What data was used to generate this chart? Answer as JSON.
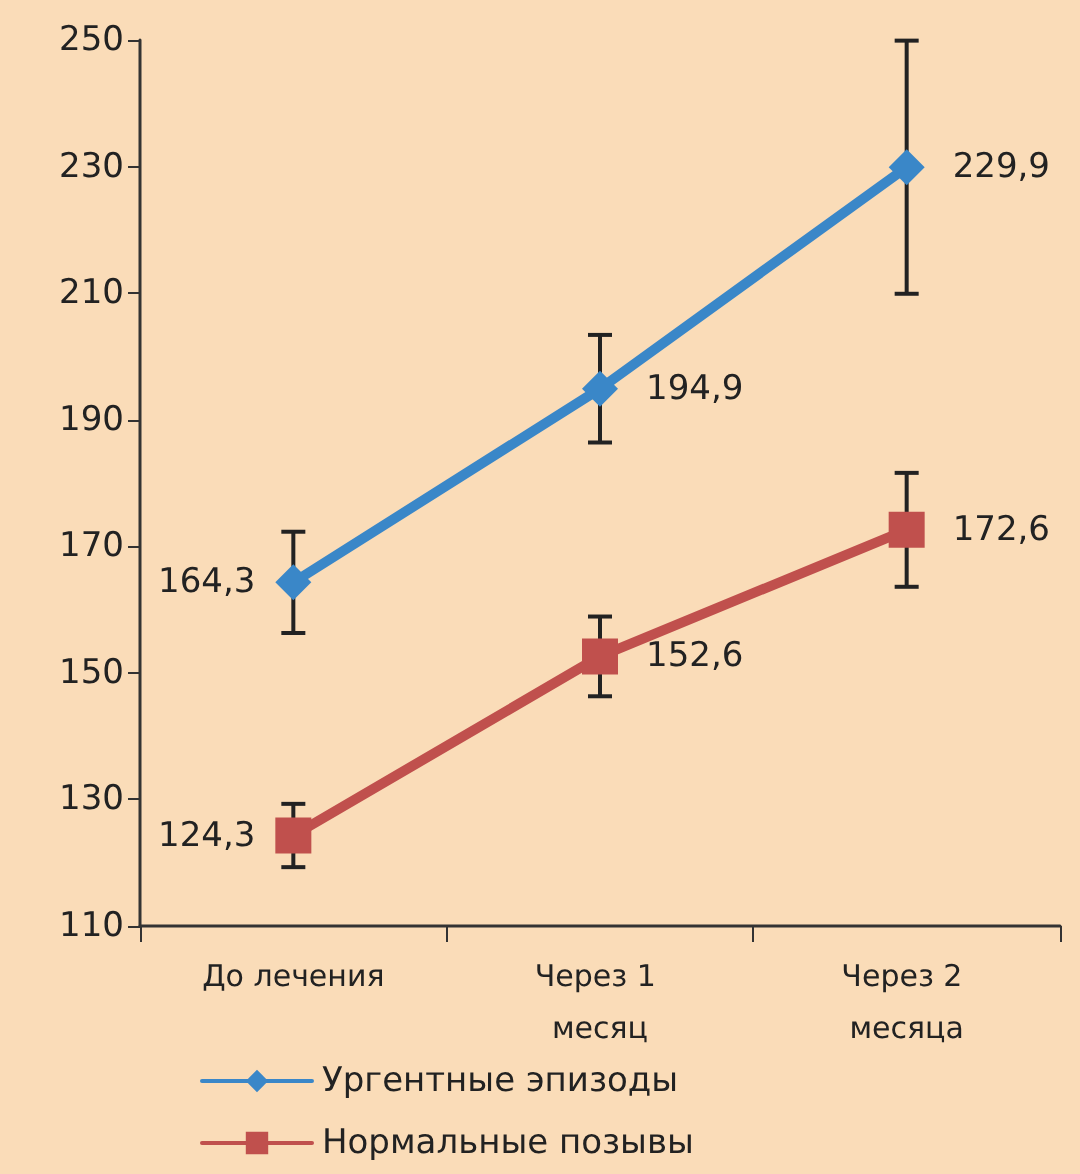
{
  "chart_data": {
    "type": "line",
    "categories": [
      "До лечения",
      "Через 1 месяц",
      "Через 2 месяца"
    ],
    "series": [
      {
        "name": "Ургентные эпизоды",
        "color": "#3a87c8",
        "marker": "diamond",
        "values": [
          164.3,
          194.9,
          229.9
        ],
        "value_labels": [
          "164,3",
          "194,9",
          "229,9"
        ],
        "errors": [
          8,
          8.5,
          20
        ]
      },
      {
        "name": "Нормальные позывы",
        "color": "#c0504d",
        "marker": "square",
        "values": [
          124.3,
          152.6,
          172.6
        ],
        "value_labels": [
          "124,3",
          "152,6",
          "172,6"
        ],
        "errors": [
          5,
          6.3,
          9
        ]
      }
    ],
    "ylim": [
      110,
      250
    ],
    "yticks": [
      110,
      130,
      150,
      170,
      190,
      210,
      230,
      250
    ],
    "grid": false,
    "legend": "bottom",
    "line_style": "solid"
  }
}
